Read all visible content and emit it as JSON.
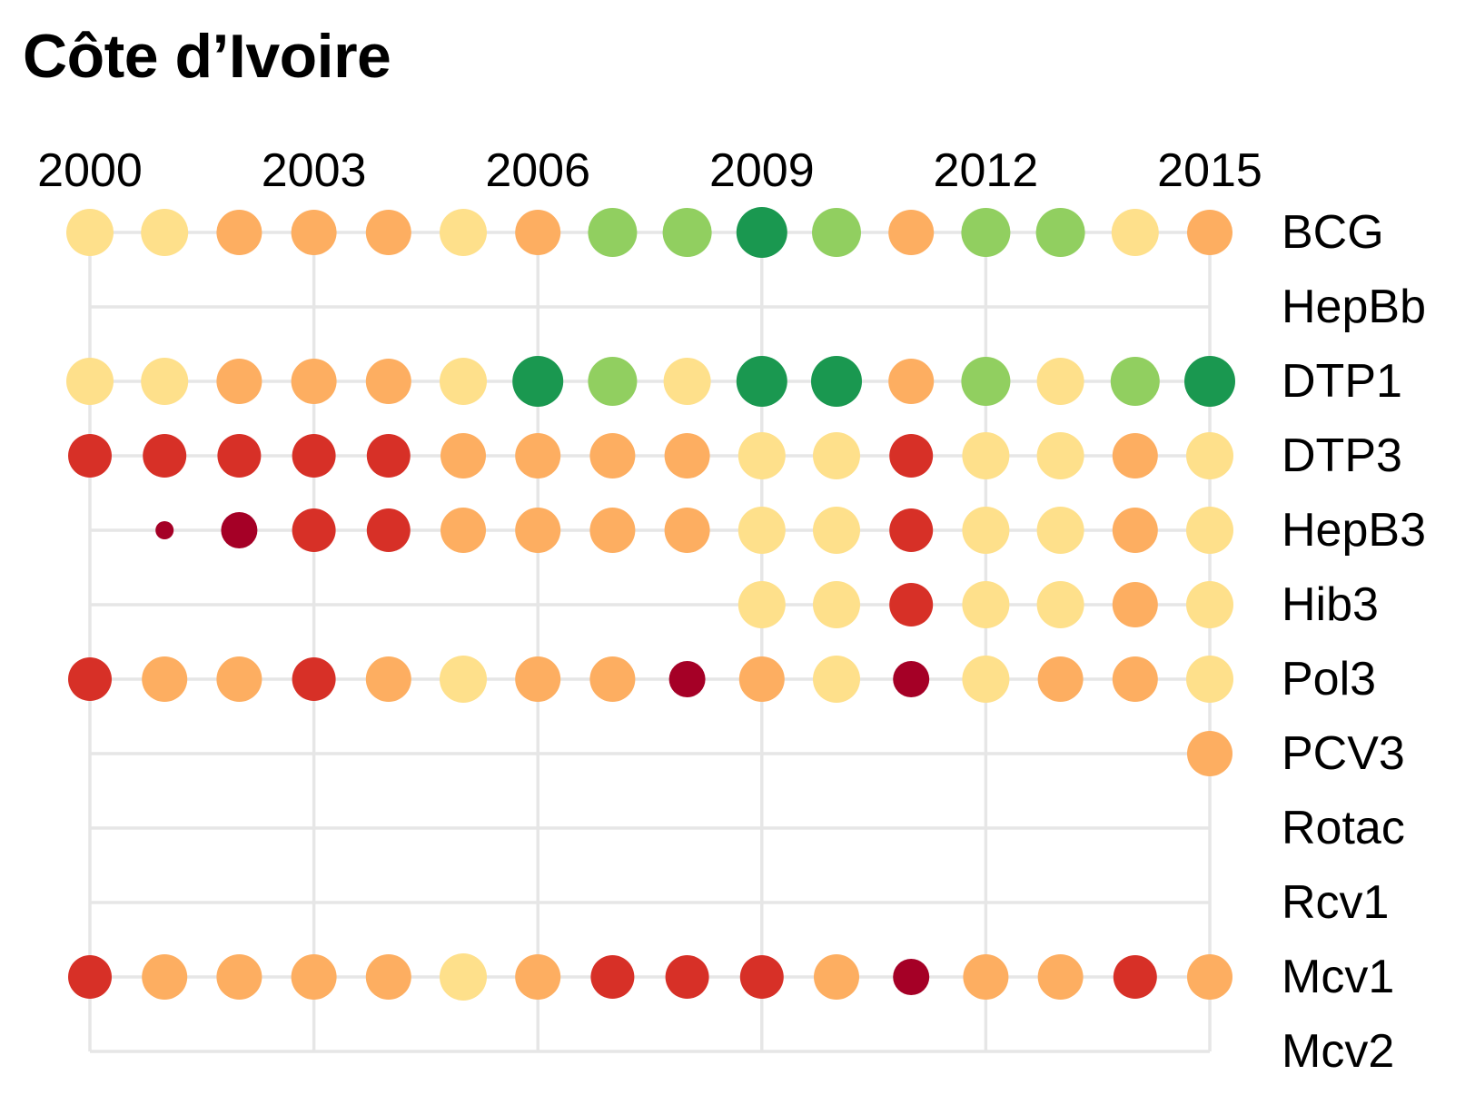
{
  "chart_data": {
    "type": "scatter",
    "title": "Côte d’Ivoire",
    "xlabel": "",
    "ylabel": "",
    "x": [
      2000,
      2001,
      2002,
      2003,
      2004,
      2005,
      2006,
      2007,
      2008,
      2009,
      2010,
      2011,
      2012,
      2013,
      2014,
      2015
    ],
    "x_ticks": [
      "2000",
      "2003",
      "2006",
      "2009",
      "2012",
      "2015"
    ],
    "x_axis_position": "top",
    "y_axis_position": "right",
    "categories": [
      "BCG",
      "HepBb",
      "DTP1",
      "DTP3",
      "HepB3",
      "Hib3",
      "Pol3",
      "PCV3",
      "Rotac",
      "Rcv1",
      "Mcv1",
      "Mcv2"
    ],
    "grid": true,
    "legend": "none",
    "encoding": "dot colour and size show coverage level",
    "colors": {
      "1": "#a50026",
      "2": "#d73027",
      "3": "#fdae61",
      "4": "#fee08b",
      "5": "#91cf60",
      "6": "#1a9850"
    },
    "level_radius": {
      "0": 10,
      "1": 20,
      "2": 24,
      "3": 25,
      "4": 26,
      "5": 27,
      "6": 28
    },
    "series": [
      {
        "name": "BCG",
        "levels": [
          4,
          4,
          3,
          3,
          3,
          4,
          3,
          5,
          5,
          6,
          5,
          3,
          5,
          5,
          4,
          3
        ]
      },
      {
        "name": "HepBb",
        "levels": [
          null,
          null,
          null,
          null,
          null,
          null,
          null,
          null,
          null,
          null,
          null,
          null,
          null,
          null,
          null,
          null
        ]
      },
      {
        "name": "DTP1",
        "levels": [
          4,
          4,
          3,
          3,
          3,
          4,
          6,
          5,
          4,
          6,
          6,
          3,
          5,
          4,
          5,
          6
        ]
      },
      {
        "name": "DTP3",
        "levels": [
          2,
          2,
          2,
          2,
          2,
          3,
          3,
          3,
          3,
          4,
          4,
          2,
          4,
          4,
          3,
          4
        ]
      },
      {
        "name": "HepB3",
        "levels": [
          null,
          0,
          1,
          2,
          2,
          3,
          3,
          3,
          3,
          4,
          4,
          2,
          4,
          4,
          3,
          4
        ]
      },
      {
        "name": "Hib3",
        "levels": [
          null,
          null,
          null,
          null,
          null,
          null,
          null,
          null,
          null,
          4,
          4,
          2,
          4,
          4,
          3,
          4
        ]
      },
      {
        "name": "Pol3",
        "levels": [
          2,
          3,
          3,
          2,
          3,
          4,
          3,
          3,
          1,
          3,
          4,
          1,
          4,
          3,
          3,
          4
        ]
      },
      {
        "name": "PCV3",
        "levels": [
          null,
          null,
          null,
          null,
          null,
          null,
          null,
          null,
          null,
          null,
          null,
          null,
          null,
          null,
          null,
          3
        ]
      },
      {
        "name": "Rotac",
        "levels": [
          null,
          null,
          null,
          null,
          null,
          null,
          null,
          null,
          null,
          null,
          null,
          null,
          null,
          null,
          null,
          null
        ]
      },
      {
        "name": "Rcv1",
        "levels": [
          null,
          null,
          null,
          null,
          null,
          null,
          null,
          null,
          null,
          null,
          null,
          null,
          null,
          null,
          null,
          null
        ]
      },
      {
        "name": "Mcv1",
        "levels": [
          2,
          3,
          3,
          3,
          3,
          4,
          3,
          2,
          2,
          2,
          3,
          1,
          3,
          3,
          2,
          3
        ]
      },
      {
        "name": "Mcv2",
        "levels": [
          null,
          null,
          null,
          null,
          null,
          null,
          null,
          null,
          null,
          null,
          null,
          null,
          null,
          null,
          null,
          null
        ]
      }
    ]
  }
}
